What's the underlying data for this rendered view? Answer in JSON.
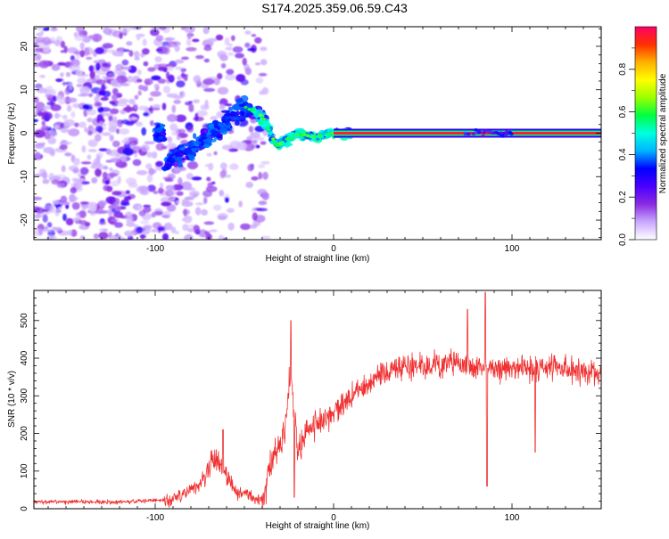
{
  "title": "S174.2025.359.06.59.C43",
  "chart_data": [
    {
      "type": "heatmap",
      "title": "S174.2025.359.06.59.C43",
      "xlabel": "Height of straight line (km)",
      "ylabel": "Frequency (Hz)",
      "xlim": [
        -168,
        150
      ],
      "ylim": [
        -24.5,
        24.5
      ],
      "x_ticks": [
        -100,
        0,
        100
      ],
      "y_ticks": [
        -20,
        -10,
        0,
        10,
        20
      ],
      "colorbar": {
        "label": "Normalized spectral amplitude",
        "range": [
          0,
          1
        ],
        "ticks": [
          "0.0",
          "0.2",
          "0.4",
          "0.6",
          "0.8"
        ],
        "tick_values": [
          0.0,
          0.2,
          0.4,
          0.6,
          0.8
        ],
        "colors": [
          "#ffffff",
          "#c9a8ff",
          "#8a2be2",
          "#4b00ff",
          "#0000ff",
          "#00b4ff",
          "#00ffe0",
          "#00ff40",
          "#9bff00",
          "#ffff00",
          "#ffb000",
          "#ff3000",
          "#ff0066"
        ]
      },
      "features": [
        {
          "name": "diffuse-noise",
          "x_range": [
            -168,
            -50
          ],
          "freq_range": [
            -24.5,
            24.5
          ]
        },
        {
          "name": "sloped-signal",
          "x": [
            -95,
            -80,
            -65,
            -50,
            -40,
            -32,
            -20,
            -10,
            0,
            150
          ],
          "freq": [
            -7,
            -4,
            1,
            6,
            4,
            -3,
            0,
            -1,
            0,
            0
          ]
        },
        {
          "name": "carrier-line",
          "x_range": [
            0,
            150
          ],
          "freq": 0
        }
      ]
    },
    {
      "type": "line",
      "xlabel": "Height of straight line (km)",
      "ylabel": "SNR (10 * v/v)",
      "xlim": [
        -168,
        150
      ],
      "ylim": [
        0,
        580
      ],
      "x_ticks": [
        -100,
        0,
        100
      ],
      "y_ticks": [
        0,
        100,
        200,
        300,
        400,
        500
      ],
      "color": "#f03030",
      "envelope_x": [
        -168,
        -120,
        -90,
        -75,
        -68,
        -62,
        -55,
        -40,
        -35,
        -28,
        -24,
        -20,
        -15,
        -5,
        10,
        25,
        40,
        60,
        80,
        100,
        120,
        150
      ],
      "envelope_y": [
        18,
        18,
        25,
        60,
        130,
        110,
        45,
        22,
        120,
        190,
        360,
        160,
        210,
        240,
        300,
        355,
        375,
        385,
        380,
        370,
        380,
        360
      ],
      "spikes": [
        {
          "x": -62,
          "y": 210
        },
        {
          "x": -24,
          "y": 500
        },
        {
          "x": -22,
          "y": 30
        },
        {
          "x": 75,
          "y": 530
        },
        {
          "x": 85,
          "y": 575
        },
        {
          "x": 86,
          "y": 60
        },
        {
          "x": 113,
          "y": 150
        }
      ]
    }
  ]
}
